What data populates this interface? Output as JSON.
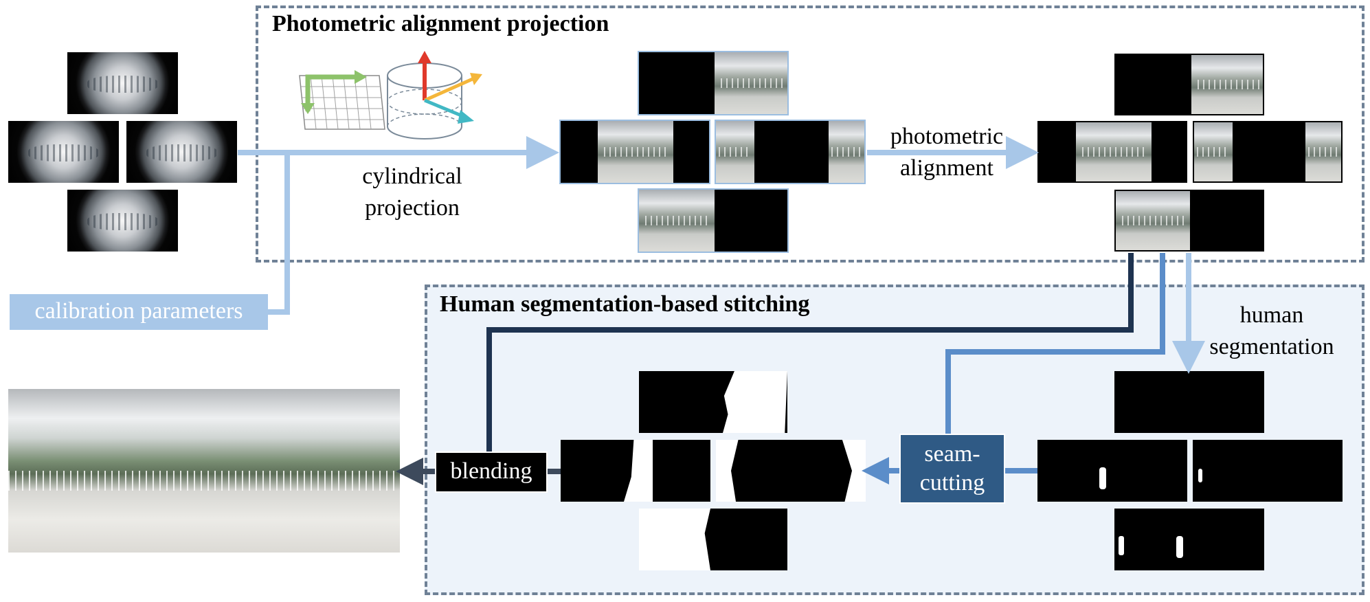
{
  "panels": {
    "top_title": "Photometric alignment projection",
    "bottom_title": "Human segmentation-based stitching"
  },
  "labels": {
    "cylindrical_projection": [
      "cylindrical",
      "projection"
    ],
    "photometric_alignment": [
      "photometric",
      "alignment"
    ],
    "human_segmentation": [
      "human",
      "segmentation"
    ]
  },
  "boxes": {
    "calibration": "calibration parameters",
    "seam_cutting": [
      "seam-",
      "cutting"
    ],
    "blending": "blending"
  },
  "colors": {
    "light_arrow": "#a8c7e8",
    "mid_arrow": "#5b8dc9",
    "dark_arrow": "#1e3350",
    "gray_arrow": "#3d4a5c",
    "panel_border": "#6f8196",
    "seam_box": "#2f5a85"
  },
  "icons": [
    "cylinder-projection-icon"
  ]
}
